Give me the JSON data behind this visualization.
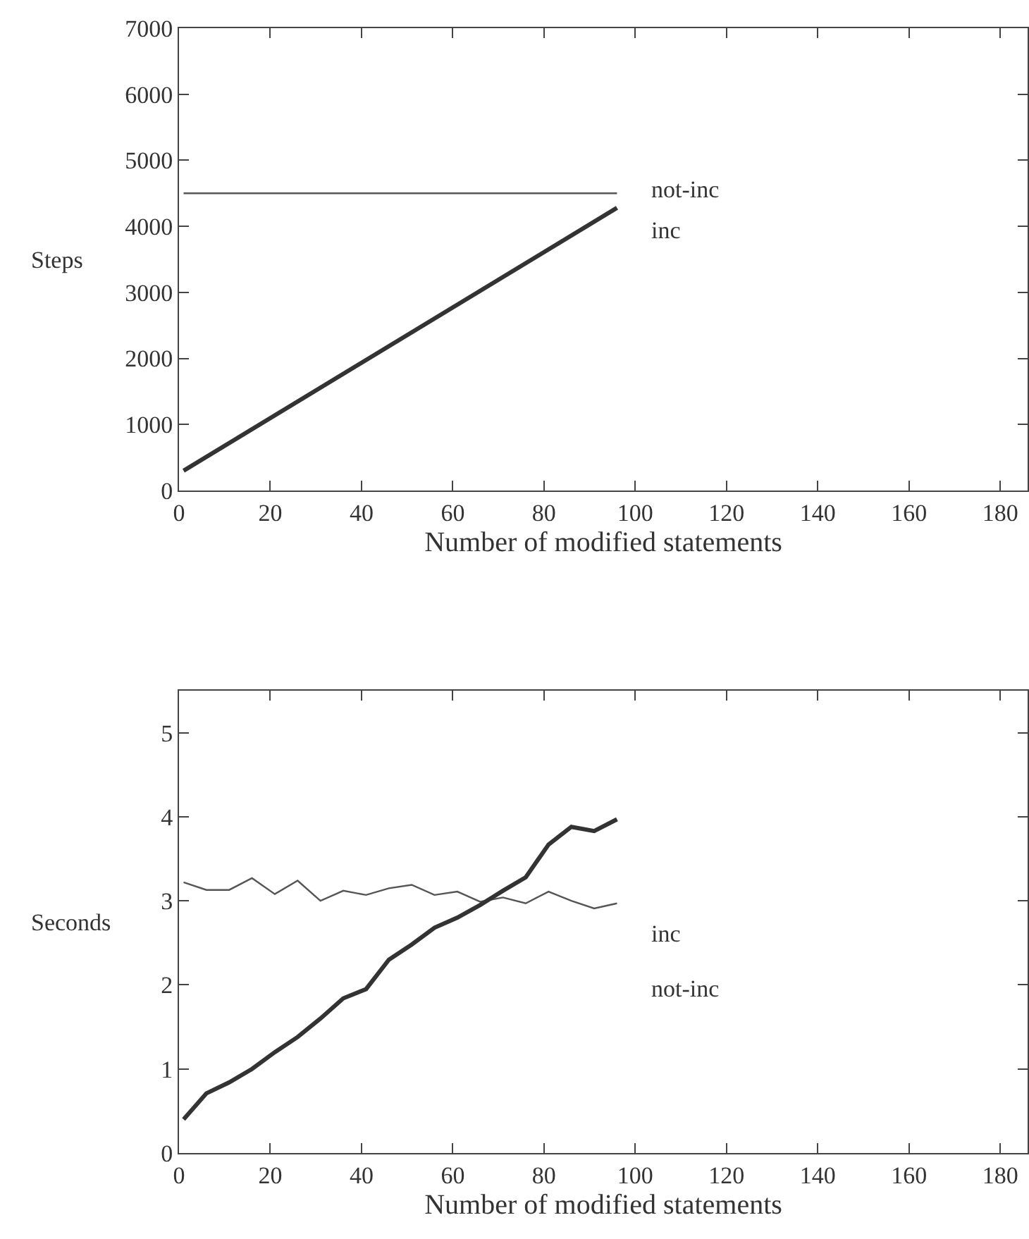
{
  "chart_data": [
    {
      "type": "line",
      "xlabel": "Number of modified statements",
      "ylabel": "Steps",
      "xlim": [
        0,
        186
      ],
      "xticks": [
        0,
        20,
        40,
        60,
        80,
        100,
        120,
        140,
        160,
        180
      ],
      "ylim": [
        0,
        7000
      ],
      "yticks": [
        0,
        1000,
        2000,
        3000,
        4000,
        5000,
        6000,
        7000
      ],
      "series": [
        {
          "color": "#555555",
          "x": [
            1,
            96
          ],
          "values": [
            4500,
            4500
          ]
        },
        {
          "color": "#333333",
          "x": [
            1,
            96
          ],
          "values": [
            300,
            4280
          ]
        }
      ],
      "annotations": [
        "not-inc",
        "inc"
      ]
    },
    {
      "type": "line",
      "xlabel": "Number of modified statements",
      "ylabel": "Seconds",
      "xlim": [
        0,
        186
      ],
      "xticks": [
        0,
        20,
        40,
        60,
        80,
        100,
        120,
        140,
        160,
        180
      ],
      "ylim": [
        0,
        5.5
      ],
      "yticks": [
        0,
        1,
        2,
        3,
        4,
        5
      ],
      "series": [
        {
          "color": "#555555",
          "x": [
            1,
            6,
            11,
            16,
            21,
            26,
            31,
            36,
            41,
            46,
            51,
            56,
            61,
            66,
            71,
            76,
            81,
            86,
            91,
            96
          ],
          "values": [
            3.22,
            3.13,
            3.13,
            3.27,
            3.08,
            3.24,
            3.0,
            3.12,
            3.07,
            3.15,
            3.19,
            3.07,
            3.11,
            2.99,
            3.04,
            2.97,
            3.11,
            3.0,
            2.91,
            2.97
          ]
        },
        {
          "color": "#333333",
          "x": [
            1,
            6,
            11,
            16,
            21,
            26,
            31,
            36,
            41,
            46,
            51,
            56,
            61,
            66,
            71,
            76,
            81,
            86,
            91,
            96
          ],
          "values": [
            0.4,
            0.71,
            0.84,
            1.0,
            1.2,
            1.38,
            1.6,
            1.84,
            1.95,
            2.3,
            2.48,
            2.68,
            2.8,
            2.95,
            3.12,
            3.28,
            3.67,
            3.88,
            3.83,
            3.97
          ]
        }
      ],
      "annotations": [
        "inc",
        "not-inc"
      ]
    }
  ]
}
